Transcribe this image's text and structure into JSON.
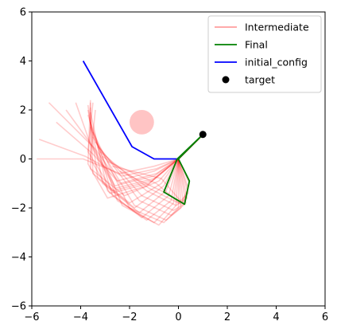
{
  "chart_data": {
    "type": "line",
    "title": "",
    "xlabel": "",
    "ylabel": "",
    "xlim": [
      -6,
      6
    ],
    "ylim": [
      -6,
      6
    ],
    "xticks": [
      -6,
      -4,
      -2,
      0,
      2,
      4,
      6
    ],
    "yticks": [
      -6,
      -4,
      -2,
      0,
      2,
      4,
      6
    ],
    "grid": false,
    "legend_position": "top-right",
    "legend": [
      {
        "label": "Intermediate",
        "kind": "line",
        "color": "#ff9e9e"
      },
      {
        "label": "Final",
        "kind": "line",
        "color": "#008000"
      },
      {
        "label": "initial_config",
        "kind": "line",
        "color": "#0000ff"
      },
      {
        "label": "target",
        "kind": "marker",
        "color": "#000000"
      }
    ],
    "obstacle": {
      "center": [
        -1.5,
        1.5
      ],
      "radius": 0.5,
      "color": "#ff6b6b"
    },
    "target": {
      "x": 1.0,
      "y": 1.0,
      "color": "#000000"
    },
    "initial_config": {
      "color": "#0000ff",
      "points": [
        [
          0,
          0
        ],
        [
          -1,
          0
        ],
        [
          -1.9,
          0.5
        ],
        [
          -3.9,
          4.0
        ]
      ]
    },
    "final": {
      "color": "#008000",
      "points": [
        [
          1.0,
          1.0
        ],
        [
          0,
          0
        ],
        [
          0.45,
          -0.9
        ],
        [
          0.25,
          -1.85
        ],
        [
          -0.6,
          -1.35
        ],
        [
          -0.05,
          0.0
        ],
        [
          1.0,
          1.0
        ]
      ]
    },
    "intermediate": {
      "color": "#ff0000",
      "paths": [
        [
          [
            1,
            1
          ],
          [
            0,
            0
          ],
          [
            -1,
            -0.3
          ],
          [
            -2.4,
            -0.6
          ],
          [
            -3.9,
            0.0
          ],
          [
            -5.8,
            0.0
          ]
        ],
        [
          [
            1,
            1
          ],
          [
            0,
            0
          ],
          [
            -0.9,
            -0.4
          ],
          [
            -2.3,
            -0.7
          ],
          [
            -3.8,
            0.1
          ],
          [
            -5.7,
            0.8
          ]
        ],
        [
          [
            1,
            1
          ],
          [
            0,
            0
          ],
          [
            -1.0,
            -0.5
          ],
          [
            -2.5,
            -0.9
          ],
          [
            -3.5,
            0.2
          ],
          [
            -5.0,
            1.5
          ]
        ],
        [
          [
            1,
            1
          ],
          [
            0,
            0
          ],
          [
            -0.9,
            -0.6
          ],
          [
            -2.4,
            -1.0
          ],
          [
            -3.4,
            0.4
          ],
          [
            -5.3,
            2.3
          ]
        ],
        [
          [
            1,
            1
          ],
          [
            0,
            0
          ],
          [
            -1.0,
            -0.7
          ],
          [
            -2.6,
            -1.1
          ],
          [
            -3.5,
            0.5
          ],
          [
            -4.6,
            2.0
          ]
        ],
        [
          [
            1,
            1
          ],
          [
            0,
            0
          ],
          [
            -1.0,
            -0.8
          ],
          [
            -2.6,
            -1.2
          ],
          [
            -3.6,
            0.6
          ],
          [
            -4.2,
            2.3
          ]
        ],
        [
          [
            1,
            1
          ],
          [
            0,
            0
          ],
          [
            -0.8,
            -0.9
          ],
          [
            -2.2,
            -1.5
          ],
          [
            -3.6,
            -0.4
          ],
          [
            -3.6,
            2.3
          ]
        ],
        [
          [
            1,
            1
          ],
          [
            0,
            0
          ],
          [
            -0.7,
            -1.0
          ],
          [
            -2.0,
            -1.8
          ],
          [
            -3.5,
            -0.6
          ],
          [
            -3.6,
            2.1
          ]
        ],
        [
          [
            1,
            1
          ],
          [
            0,
            0
          ],
          [
            -0.6,
            -1.1
          ],
          [
            -1.8,
            -2.0
          ],
          [
            -3.3,
            -0.8
          ],
          [
            -3.7,
            2.2
          ]
        ],
        [
          [
            1,
            1
          ],
          [
            0,
            0
          ],
          [
            -0.5,
            -1.3
          ],
          [
            -1.6,
            -2.2
          ],
          [
            -3.1,
            -1.0
          ],
          [
            -3.7,
            2.0
          ]
        ],
        [
          [
            1,
            1
          ],
          [
            0,
            0
          ],
          [
            -0.4,
            -1.5
          ],
          [
            -1.5,
            -2.4
          ],
          [
            -2.9,
            -1.3
          ],
          [
            -3.6,
            1.9
          ]
        ],
        [
          [
            1,
            1
          ],
          [
            0,
            0
          ],
          [
            -0.3,
            -1.7
          ],
          [
            -1.3,
            -2.5
          ],
          [
            -2.7,
            -1.5
          ],
          [
            -3.7,
            1.8
          ]
        ],
        [
          [
            1,
            1
          ],
          [
            0,
            0
          ],
          [
            -0.2,
            -1.8
          ],
          [
            -1.0,
            -2.6
          ],
          [
            -2.5,
            -1.7
          ],
          [
            -3.6,
            1.5
          ]
        ],
        [
          [
            1,
            1
          ],
          [
            0,
            0
          ],
          [
            -0.1,
            -1.9
          ],
          [
            -0.8,
            -2.7
          ],
          [
            -2.3,
            -1.9
          ],
          [
            -3.6,
            1.3
          ]
        ],
        [
          [
            1,
            1
          ],
          [
            0,
            0
          ],
          [
            0.0,
            -2.0
          ],
          [
            -0.6,
            -2.6
          ],
          [
            -2.0,
            -2.0
          ],
          [
            -3.5,
            1.1
          ]
        ],
        [
          [
            1,
            1
          ],
          [
            0,
            0
          ],
          [
            0.1,
            -2.0
          ],
          [
            -0.5,
            -2.5
          ],
          [
            -1.8,
            -1.9
          ],
          [
            -3.5,
            0.9
          ]
        ],
        [
          [
            1,
            1
          ],
          [
            0,
            0
          ],
          [
            0.2,
            -1.9
          ],
          [
            -0.3,
            -2.3
          ],
          [
            -1.6,
            -1.7
          ],
          [
            -3.4,
            0.7
          ]
        ],
        [
          [
            1,
            1
          ],
          [
            0,
            0
          ],
          [
            0.3,
            -1.8
          ],
          [
            -0.2,
            -2.1
          ],
          [
            -1.5,
            -1.5
          ],
          [
            -3.3,
            0.5
          ]
        ],
        [
          [
            1,
            1
          ],
          [
            0,
            0
          ],
          [
            0.35,
            -1.6
          ],
          [
            -0.1,
            -1.9
          ],
          [
            -1.3,
            -1.3
          ],
          [
            -3.2,
            0.3
          ]
        ],
        [
          [
            1,
            1
          ],
          [
            0,
            0
          ],
          [
            0.4,
            -1.4
          ],
          [
            0.0,
            -1.8
          ],
          [
            -1.2,
            -1.2
          ],
          [
            -3.1,
            0.1
          ]
        ],
        [
          [
            1,
            1
          ],
          [
            0,
            0
          ],
          [
            0.4,
            -1.2
          ],
          [
            0.1,
            -1.85
          ],
          [
            -0.9,
            -1.0
          ],
          [
            -2.9,
            -0.1
          ]
        ],
        [
          [
            1,
            1
          ],
          [
            0,
            0
          ],
          [
            0.45,
            -1.0
          ],
          [
            0.2,
            -1.85
          ],
          [
            -0.7,
            -0.8
          ],
          [
            -2.7,
            -0.3
          ]
        ],
        [
          [
            1,
            1
          ],
          [
            0,
            0
          ],
          [
            0.45,
            -0.9
          ],
          [
            0.25,
            -1.85
          ],
          [
            -0.6,
            -1.35
          ],
          [
            -2.4,
            -0.5
          ]
        ],
        [
          [
            1,
            1
          ],
          [
            0,
            0
          ],
          [
            -1.1,
            -0.9
          ],
          [
            -2.7,
            -1.3
          ],
          [
            -3.7,
            0.3
          ],
          [
            -3.5,
            2.3
          ]
        ],
        [
          [
            1,
            1
          ],
          [
            0,
            0
          ],
          [
            -1.2,
            -1.0
          ],
          [
            -2.8,
            -1.4
          ],
          [
            -3.6,
            0.0
          ],
          [
            -3.4,
            2.0
          ]
        ],
        [
          [
            1,
            1
          ],
          [
            0,
            0
          ],
          [
            -1.3,
            -1.1
          ],
          [
            -2.9,
            -1.6
          ],
          [
            -3.7,
            -0.2
          ],
          [
            -3.6,
            2.4
          ]
        ]
      ]
    }
  }
}
